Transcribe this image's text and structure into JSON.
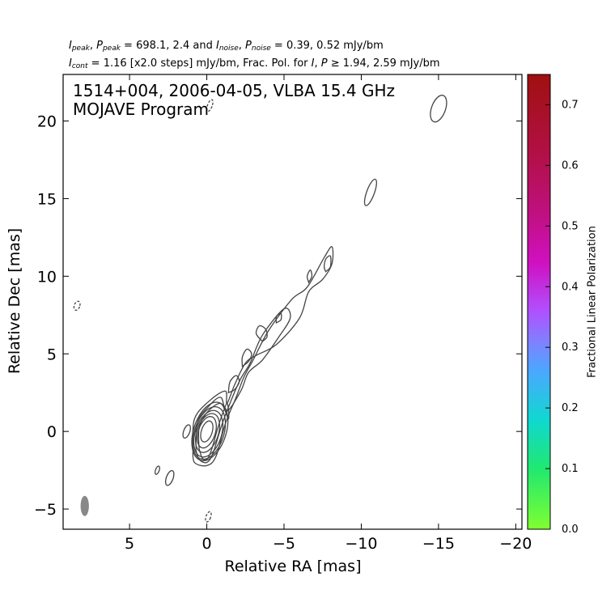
{
  "header": {
    "line1": {
      "i_peak": "I",
      "i_peak_sub": "peak",
      "sep1": ", ",
      "p_peak": "P",
      "p_peak_sub": "peak",
      "vals1": " = 698.1, 2.4 and ",
      "i_noise": "I",
      "i_noise_sub": "noise",
      "sep2": ", ",
      "p_noise": "P",
      "p_noise_sub": "noise",
      "vals2": " = 0.39, 0.52 mJy/bm"
    },
    "line2": {
      "i_cont": "I",
      "i_cont_sub": "cont",
      "text1": " = 1.16 [x2.0 steps] mJy/bm, Frac. Pol. for ",
      "i": "I",
      "sep": ", ",
      "p": "P",
      "text2": " ≥ 1.94, 2.59 mJy/bm"
    }
  },
  "chart_data": {
    "type": "contour",
    "title_line1": "1514+004, 2006-04-05, VLBA 15.4 GHz",
    "title_line2": "MOJAVE Program",
    "xlabel": "Relative RA [mas]",
    "ylabel": "Relative Dec [mas]",
    "xlim": [
      9.3,
      -20.4
    ],
    "ylim": [
      -6.3,
      23.0
    ],
    "xticks": [
      5,
      0,
      -5,
      -10,
      -15,
      -20
    ],
    "xtick_labels": [
      "5",
      "0",
      "−5",
      "−10",
      "−15",
      "−20"
    ],
    "yticks": [
      -5,
      0,
      5,
      10,
      15,
      20
    ],
    "ytick_labels": [
      "−5",
      "0",
      "5",
      "10",
      "15",
      "20"
    ],
    "contour_color": "#444444",
    "core_contours": [
      {
        "cx": 0.0,
        "cy": 0.0,
        "rx": 0.35,
        "ry": 0.7
      },
      {
        "cx": 0.0,
        "cy": -0.05,
        "rx": 0.55,
        "ry": 1.05
      },
      {
        "cx": -0.05,
        "cy": -0.1,
        "rx": 0.7,
        "ry": 1.3
      },
      {
        "cx": -0.1,
        "cy": -0.15,
        "rx": 0.85,
        "ry": 1.55
      },
      {
        "cx": -0.15,
        "cy": -0.1,
        "rx": 0.95,
        "ry": 1.75
      },
      {
        "cx": -0.2,
        "cy": 0.0,
        "rx": 1.05,
        "ry": 1.95
      }
    ],
    "jet_contours": [
      [
        [
          0.9,
          -1.2
        ],
        [
          0.8,
          -2.0
        ],
        [
          0.0,
          -2.2
        ],
        [
          -0.6,
          -1.6
        ],
        [
          -1.2,
          0.5
        ],
        [
          -1.9,
          2.2
        ],
        [
          -2.4,
          3.5
        ],
        [
          -3.0,
          4.6
        ],
        [
          -4.0,
          6.5
        ],
        [
          -5.5,
          8.5
        ],
        [
          -6.5,
          9.3
        ],
        [
          -7.6,
          11.2
        ],
        [
          -8.1,
          11.9
        ],
        [
          -8.1,
          10.8
        ],
        [
          -7.5,
          9.8
        ],
        [
          -6.6,
          9.0
        ],
        [
          -6.0,
          7.3
        ],
        [
          -4.5,
          5.6
        ],
        [
          -3.2,
          4.9
        ],
        [
          -2.5,
          4.4
        ],
        [
          -1.8,
          3.0
        ],
        [
          -1.3,
          1.8
        ],
        [
          -1.2,
          2.6
        ],
        [
          -0.2,
          2.0
        ],
        [
          0.8,
          0.8
        ],
        [
          0.9,
          -1.2
        ]
      ],
      [
        [
          0.7,
          -1.2
        ],
        [
          0.5,
          -1.8
        ],
        [
          0.0,
          -2.0
        ],
        [
          -0.4,
          -1.4
        ],
        [
          -1.0,
          0.5
        ],
        [
          -1.7,
          2.3
        ],
        [
          -2.2,
          3.4
        ],
        [
          -2.8,
          4.4
        ],
        [
          -3.6,
          6.2
        ],
        [
          -5.0,
          7.9
        ],
        [
          -5.4,
          7.3
        ],
        [
          -4.6,
          6.0
        ],
        [
          -3.6,
          4.6
        ],
        [
          -2.7,
          3.8
        ],
        [
          -2.2,
          2.6
        ],
        [
          -1.3,
          1.3
        ],
        [
          -0.9,
          2.2
        ],
        [
          -0.1,
          1.6
        ],
        [
          0.6,
          0.6
        ],
        [
          0.7,
          -1.2
        ]
      ],
      [
        [
          0.5,
          -1.1
        ],
        [
          0.3,
          -1.7
        ],
        [
          0.0,
          -1.8
        ],
        [
          -0.3,
          -1.2
        ],
        [
          -0.8,
          0.5
        ],
        [
          -1.3,
          1.8
        ],
        [
          -1.4,
          0.8
        ],
        [
          -0.9,
          1.8
        ],
        [
          0.0,
          1.2
        ],
        [
          0.5,
          0.2
        ],
        [
          0.5,
          -1.1
        ]
      ],
      [
        [
          -1.4,
          2.5
        ],
        [
          -1.8,
          2.7
        ],
        [
          -2.1,
          3.2
        ],
        [
          -1.9,
          3.6
        ],
        [
          -1.5,
          3.2
        ],
        [
          -1.4,
          2.5
        ]
      ],
      [
        [
          -2.3,
          4.2
        ],
        [
          -2.7,
          4.5
        ],
        [
          -2.9,
          5.0
        ],
        [
          -2.6,
          5.3
        ],
        [
          -2.3,
          4.8
        ],
        [
          -2.3,
          4.2
        ]
      ],
      [
        [
          -3.6,
          5.8
        ],
        [
          -3.2,
          6.3
        ],
        [
          -3.4,
          6.8
        ],
        [
          -3.8,
          6.6
        ],
        [
          -3.9,
          6.1
        ],
        [
          -3.6,
          5.8
        ]
      ],
      [
        [
          -4.5,
          7.0
        ],
        [
          -4.8,
          7.2
        ],
        [
          -4.8,
          7.6
        ],
        [
          -4.5,
          7.4
        ],
        [
          -4.5,
          7.0
        ]
      ],
      [
        [
          -6.6,
          9.6
        ],
        [
          -6.8,
          10.0
        ],
        [
          -6.7,
          10.4
        ],
        [
          -6.5,
          10.0
        ],
        [
          -6.6,
          9.6
        ]
      ],
      [
        [
          -7.7,
          10.3
        ],
        [
          -8.0,
          10.6
        ],
        [
          -8.0,
          11.3
        ],
        [
          -7.7,
          11.1
        ],
        [
          -7.6,
          10.6
        ],
        [
          -7.7,
          10.3
        ]
      ]
    ],
    "isolated_contours": [
      {
        "cx": 1.3,
        "cy": 0.0,
        "rx": 0.2,
        "ry": 0.45,
        "dashed": false
      },
      {
        "cx": 3.2,
        "cy": -2.5,
        "rx": 0.12,
        "ry": 0.28,
        "dashed": false
      },
      {
        "cx": 2.4,
        "cy": -3.0,
        "rx": 0.22,
        "ry": 0.5,
        "dashed": false
      },
      {
        "cx": -15.0,
        "cy": 20.8,
        "rx": 0.45,
        "ry": 0.9,
        "dashed": false
      },
      {
        "cx": -10.6,
        "cy": 15.4,
        "rx": 0.25,
        "ry": 0.9,
        "dashed": false
      },
      {
        "cx": 8.4,
        "cy": 8.1,
        "rx": 0.18,
        "ry": 0.3,
        "dashed": true
      },
      {
        "cx": -0.2,
        "cy": 21.0,
        "rx": 0.15,
        "ry": 0.4,
        "dashed": true
      },
      {
        "cx": -0.1,
        "cy": -5.5,
        "rx": 0.15,
        "ry": 0.35,
        "dashed": true
      }
    ],
    "beam": {
      "cx": 7.9,
      "cy": -4.8,
      "rx": 0.27,
      "ry": 0.65,
      "color": "#888888"
    },
    "colorbar": {
      "label": "Fractional Linear Polarization",
      "vmin": 0.0,
      "vmax": 0.75,
      "ticks": [
        0.0,
        0.1,
        0.2,
        0.3,
        0.4,
        0.5,
        0.6,
        0.7
      ],
      "tick_labels": [
        "0.0",
        "0.1",
        "0.2",
        "0.3",
        "0.4",
        "0.5",
        "0.6",
        "0.7"
      ],
      "stops": [
        {
          "v": 0.0,
          "color": "#80ff30"
        },
        {
          "v": 0.1,
          "color": "#20e870"
        },
        {
          "v": 0.18,
          "color": "#10d8d0"
        },
        {
          "v": 0.26,
          "color": "#4aa8ff"
        },
        {
          "v": 0.31,
          "color": "#8080ff"
        },
        {
          "v": 0.36,
          "color": "#b050ff"
        },
        {
          "v": 0.44,
          "color": "#d010c0"
        },
        {
          "v": 0.52,
          "color": "#c01080"
        },
        {
          "v": 0.63,
          "color": "#b01040"
        },
        {
          "v": 0.75,
          "color": "#a01010"
        }
      ]
    }
  }
}
